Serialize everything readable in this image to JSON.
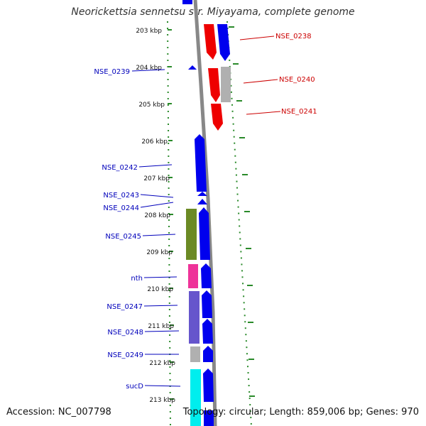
{
  "title": "Neorickettsia sennetsu str. Miyayama, complete genome",
  "footer": {
    "accession": "Accession: NC_007798",
    "stats": "Topology: circular; Length: 859,006 bp; Genes: 970"
  },
  "colors": {
    "forward_cds": "#0000ee",
    "reverse_cds": "#ee0000",
    "unassigned": "#b0b0b0",
    "olive": "#6b8a24",
    "magenta": "#ee3399",
    "slate": "#6655cc",
    "cyan": "#00eeee",
    "backbone": "#888888",
    "gc_dots": "#2a8a2a",
    "label_left": "#0000bb",
    "label_right": "#cc0000"
  },
  "scale_ticks": [
    "203 kbp",
    "204 kbp",
    "205 kbp",
    "206 kbp",
    "207 kbp",
    "208 kbp",
    "209 kbp",
    "210 kbp",
    "211 kbp",
    "212 kbp",
    "213 kbp"
  ],
  "gene_labels": {
    "left": [
      "NSE_0239",
      "NSE_0242",
      "NSE_0243",
      "NSE_0244",
      "NSE_0245",
      "nth",
      "NSE_0247",
      "NSE_0248",
      "NSE_0249",
      "sucD"
    ],
    "right": [
      "NSE_0238",
      "NSE_0240",
      "NSE_0241"
    ]
  }
}
